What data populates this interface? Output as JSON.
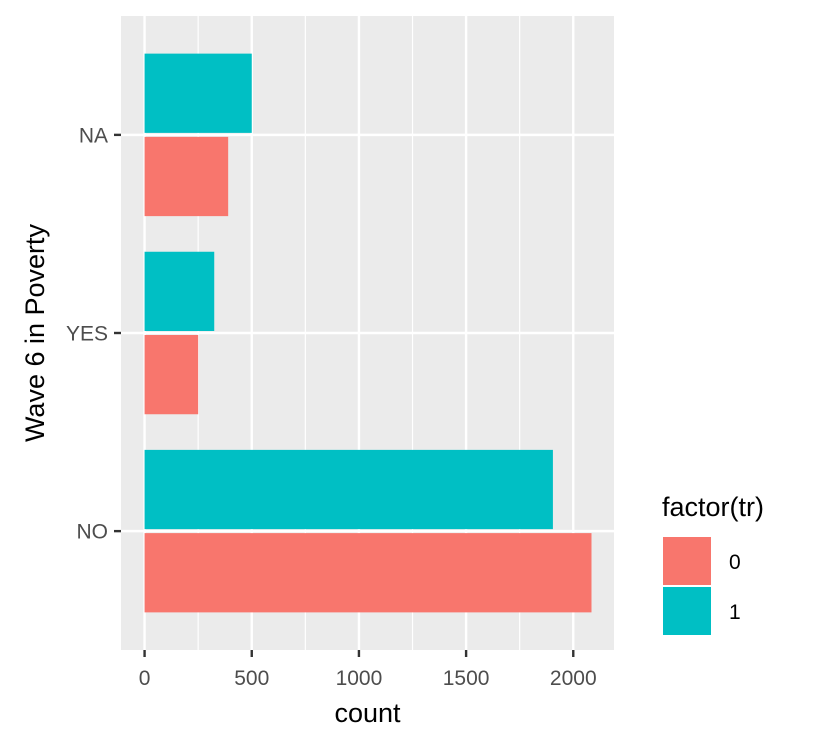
{
  "chart_data": {
    "type": "bar",
    "orientation": "horizontal",
    "categories": [
      "NO",
      "YES",
      "NA"
    ],
    "series": [
      {
        "name": "0",
        "color": "#F8766D",
        "values": [
          2085,
          250,
          390
        ]
      },
      {
        "name": "1",
        "color": "#00BFC4",
        "values": [
          1905,
          325,
          500
        ]
      }
    ],
    "xlabel": "count",
    "ylabel": "Wave 6 in Poverty",
    "xticks": [
      0,
      500,
      1000,
      1500,
      2000
    ],
    "xlim": [
      -110,
      2190
    ],
    "grid": true,
    "panel_background": "#EBEBEB",
    "legend": {
      "title": "factor(tr)",
      "position": "right",
      "entries": [
        "0",
        "1"
      ]
    }
  }
}
